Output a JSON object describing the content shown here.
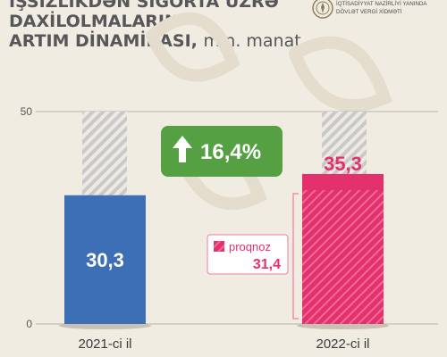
{
  "header": {
    "title_lines": [
      "İŞSİZLİKDƏN SIĞORTA ÜZRƏ",
      "DAXİLOLMALARIN",
      "ARTIM DİNAMİKASI,"
    ],
    "unit": "mln. manat",
    "org_lines": [
      "İQTİSADİYYAT NAZİRLİYİ YANINDA",
      "DÖVLƏT VERGİ XİDMƏTİ"
    ],
    "emblem_icon": "state-emblem-icon"
  },
  "badge": {
    "text": "16,4%",
    "icon": "arrow-up-icon",
    "color": "#55a043"
  },
  "colors": {
    "bar_2021": "#3d6fb6",
    "bar_2022": "#e3316d",
    "hatch_gray": "#c9c9c9",
    "background": "#f1ece2"
  },
  "chart_data": {
    "type": "bar",
    "categories": [
      "2021-ci il",
      "2022-ci il"
    ],
    "values": [
      30.3,
      35.3
    ],
    "data_labels": [
      "30,3",
      "35,3"
    ],
    "max_labels": [
      "50",
      "0"
    ],
    "ylim": [
      0,
      50
    ],
    "forecast": {
      "category": "2022-ci il",
      "label": "proqnoz",
      "value": 31.4,
      "value_label": "31,4"
    },
    "change_label": "16,4%",
    "grid": true,
    "legend": "none"
  }
}
